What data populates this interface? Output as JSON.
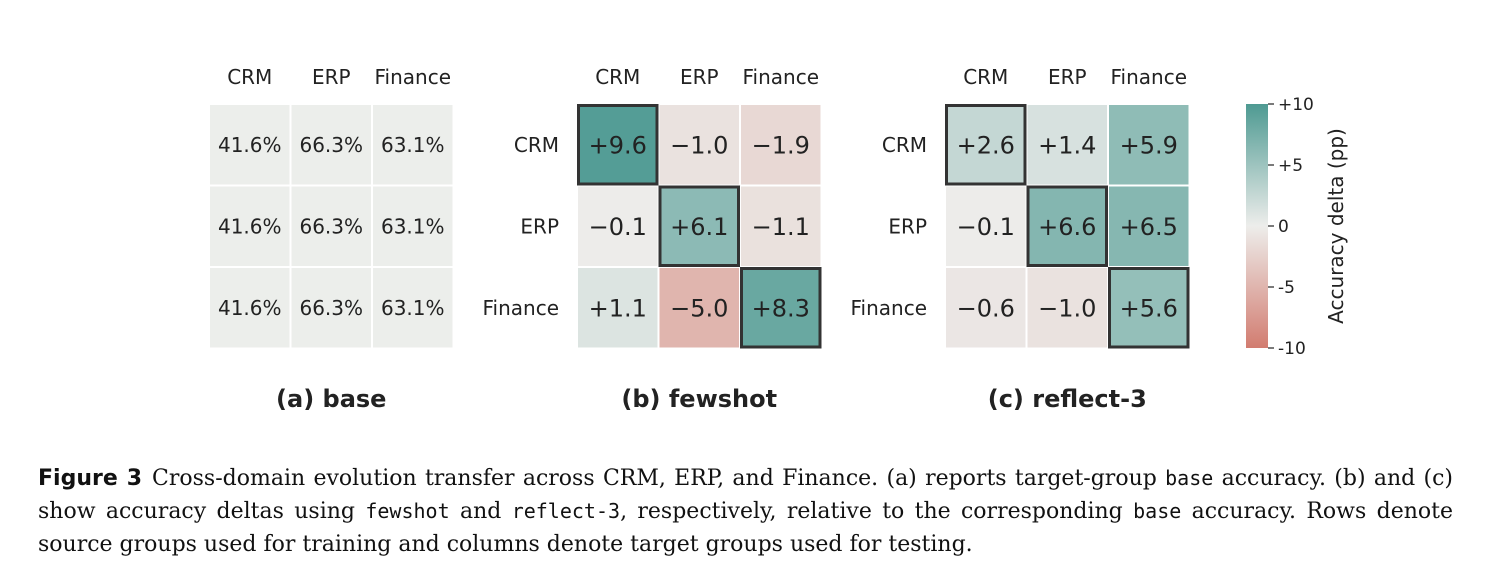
{
  "chart_data": [
    {
      "type": "heatmap",
      "title": "(a) base",
      "columns": [
        "CRM",
        "ERP",
        "Finance"
      ],
      "rows": [],
      "values": [
        [
          41.6,
          66.3,
          63.1
        ],
        [
          41.6,
          66.3,
          63.1
        ],
        [
          41.6,
          66.3,
          63.1
        ]
      ],
      "labels": [
        [
          "41.6%",
          "66.3%",
          "63.1%"
        ],
        [
          "41.6%",
          "66.3%",
          "63.1%"
        ],
        [
          "41.6%",
          "66.3%",
          "63.1%"
        ]
      ],
      "neutral_color": "#eceeeb"
    },
    {
      "type": "heatmap",
      "title": "(b) fewshot",
      "columns": [
        "CRM",
        "ERP",
        "Finance"
      ],
      "rows": [
        "CRM",
        "ERP",
        "Finance"
      ],
      "values": [
        [
          9.6,
          -1.0,
          -1.9
        ],
        [
          -0.1,
          6.1,
          -1.1
        ],
        [
          1.1,
          -5.0,
          8.3
        ]
      ],
      "labels": [
        [
          "+9.6",
          "−1.0",
          "−1.9"
        ],
        [
          "−0.1",
          "+6.1",
          "−1.1"
        ],
        [
          "+1.1",
          "−5.0",
          "+8.3"
        ]
      ],
      "highlight_diagonal": true
    },
    {
      "type": "heatmap",
      "title": "(c) reflect-3",
      "columns": [
        "CRM",
        "ERP",
        "Finance"
      ],
      "rows": [
        "CRM",
        "ERP",
        "Finance"
      ],
      "values": [
        [
          2.6,
          1.4,
          5.9
        ],
        [
          -0.1,
          6.6,
          6.5
        ],
        [
          -0.6,
          -1.0,
          5.6
        ]
      ],
      "labels": [
        [
          "+2.6",
          "+1.4",
          "+5.9"
        ],
        [
          "−0.1",
          "+6.6",
          "+6.5"
        ],
        [
          "−0.6",
          "−1.0",
          "+5.6"
        ]
      ],
      "highlight_diagonal": true
    }
  ],
  "colorbar": {
    "label": "Accuracy delta (pp)",
    "range": [
      -10,
      10
    ],
    "ticks": [
      {
        "value": 10,
        "label": "+10"
      },
      {
        "value": 5,
        "label": "+5"
      },
      {
        "value": 0,
        "label": "0"
      },
      {
        "value": -5,
        "label": "-5"
      },
      {
        "value": -10,
        "label": "-10"
      }
    ],
    "colors": {
      "negative": "#d27c70",
      "zero": "#ededeb",
      "positive": "#4e9a92"
    }
  },
  "caption": {
    "label": "Figure 3",
    "part1": "Cross-domain evolution transfer across CRM, ERP, and Finance. (a) reports target-group ",
    "code1": "base",
    "part2": " accuracy. (b) and (c) show accuracy deltas using ",
    "code2": "fewshot",
    "part3": " and ",
    "code3": "reflect-3",
    "part4": ", respectively, relative to the corresponding ",
    "code4": "base",
    "part5": " accuracy. Rows denote source groups used for training and columns denote target groups used for testing."
  }
}
